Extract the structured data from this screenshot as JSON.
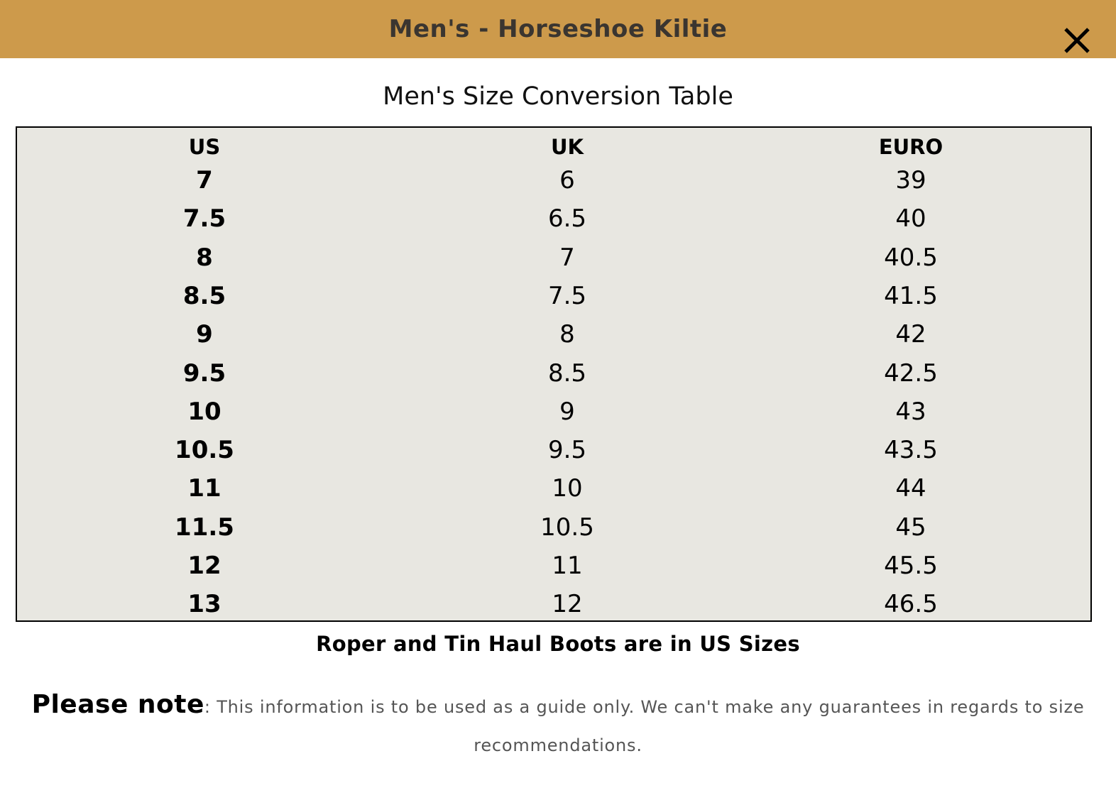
{
  "header": {
    "title": "Men's - Horseshoe Kiltie",
    "close_icon": "close-icon",
    "background_color": "#cd9a4b"
  },
  "table": {
    "caption": "Men's Size Conversion Table",
    "columns": [
      "US",
      "UK",
      "EURO"
    ],
    "rows": [
      [
        "7",
        "6",
        "39"
      ],
      [
        "7.5",
        "6.5",
        "40"
      ],
      [
        "8",
        "7",
        "40.5"
      ],
      [
        "8.5",
        "7.5",
        "41.5"
      ],
      [
        "9",
        "8",
        "42"
      ],
      [
        "9.5",
        "8.5",
        "42.5"
      ],
      [
        "10",
        "9",
        "43"
      ],
      [
        "10.5",
        "9.5",
        "43.5"
      ],
      [
        "11",
        "10",
        "44"
      ],
      [
        "11.5",
        "10.5",
        "45"
      ],
      [
        "12",
        "11",
        "45.5"
      ],
      [
        "13",
        "12",
        "46.5"
      ]
    ],
    "background_color": "#e8e7e1"
  },
  "footnote": "Roper and Tin Haul Boots are in US Sizes",
  "note": {
    "label": "Please note",
    "separator": ":",
    "text": " This information is to be used as a guide only. We can't make any guarantees in regards to size recommendations."
  }
}
